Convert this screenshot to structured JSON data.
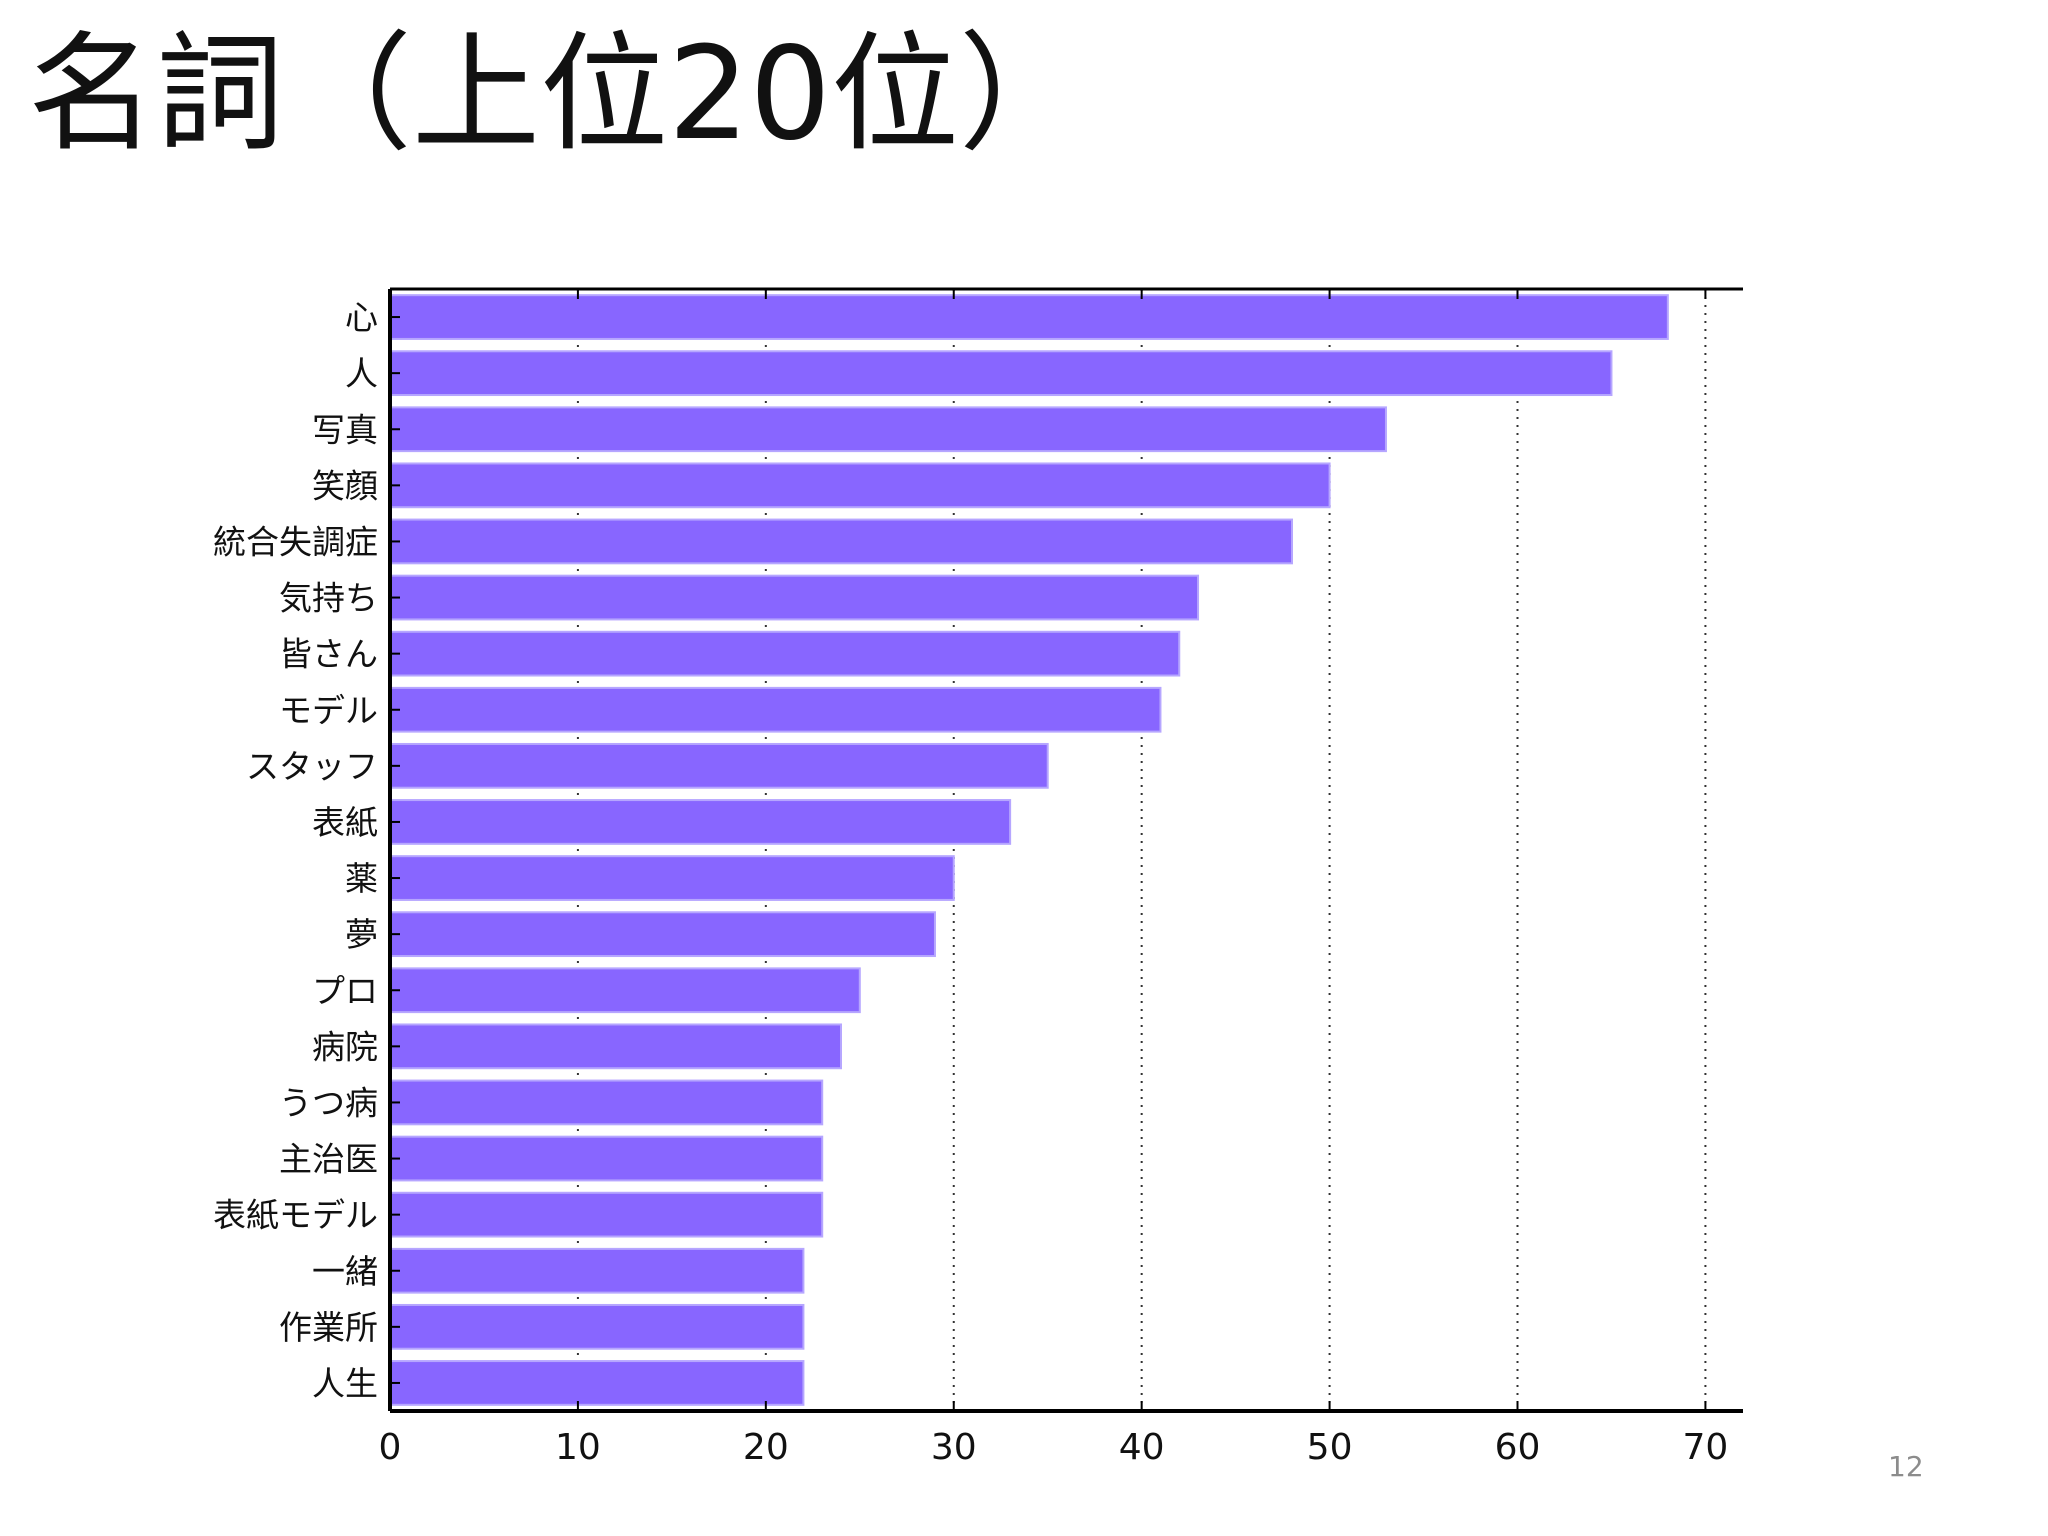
{
  "slide": {
    "title": "名詞（上位20位）",
    "page_number": "12"
  },
  "colors": {
    "bar_fill": "#8866ff",
    "bar_edge": "#b6a6ff",
    "axis": "#000000",
    "grid": "#333333"
  },
  "chart_data": {
    "type": "bar",
    "orientation": "horizontal",
    "title": "",
    "xlabel": "",
    "ylabel": "",
    "categories": [
      "心",
      "人",
      "写真",
      "笑顔",
      "統合失調症",
      "気持ち",
      "皆さん",
      "モデル",
      "スタッフ",
      "表紙",
      "薬",
      "夢",
      "プロ",
      "病院",
      "うつ病",
      "主治医",
      "表紙モデル",
      "一緒",
      "作業所",
      "人生"
    ],
    "values": [
      68,
      65,
      53,
      50,
      48,
      43,
      42,
      41,
      35,
      33,
      30,
      29,
      25,
      24,
      23,
      23,
      23,
      22,
      22,
      22
    ],
    "xlim": [
      0,
      72
    ],
    "xticks": [
      0,
      10,
      20,
      30,
      40,
      50,
      60,
      70
    ],
    "grid": "vertical dotted",
    "legend": "none"
  }
}
